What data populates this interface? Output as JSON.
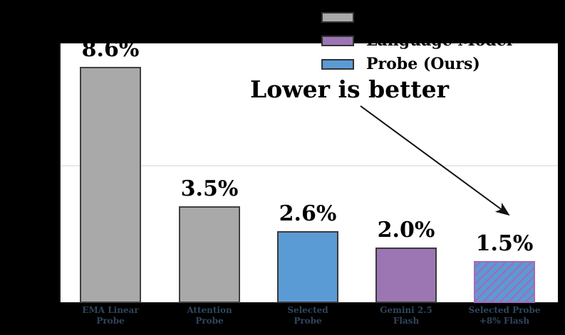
{
  "page": {
    "background_color": "#000000",
    "plot_background_color": "#ffffff"
  },
  "annotation": {
    "text": "Lower is better",
    "arrow": "points from annotation text down-right to the last bar"
  },
  "legend": {
    "position": "top, partially over black background",
    "items": [
      {
        "label": "",
        "color": "#a9a9a9",
        "edge_color": "#333333"
      },
      {
        "label": "Language Model",
        "color": "#9c76b2",
        "edge_color": "#333333"
      },
      {
        "label": "Probe (Ours)",
        "color": "#5b9bd5",
        "edge_color": "#333333"
      }
    ]
  },
  "chart_data": {
    "type": "bar",
    "categories": [
      [
        "EMA Linear",
        "Probe"
      ],
      [
        "Attention",
        "Probe"
      ],
      [
        "Selected",
        "Probe"
      ],
      [
        "Gemini 2.5",
        "Flash"
      ],
      [
        "Selected Probe",
        "+8% Flash"
      ]
    ],
    "values": [
      8.6,
      3.5,
      2.6,
      2.0,
      1.5
    ],
    "value_labels": [
      "8.6%",
      "3.5%",
      "2.6%",
      "2.0%",
      "1.5%"
    ],
    "bar_colors": [
      "#a9a9a9",
      "#a9a9a9",
      "#5b9bd5",
      "#9c76b2",
      "#5b9bd5"
    ],
    "bar_edge_colors": [
      "#404040",
      "#404040",
      "#3a3a3a",
      "#3a3a3a",
      "#a569b5"
    ],
    "hatch": [
      null,
      null,
      null,
      null,
      "/"
    ],
    "hatch_color": "#a569b5",
    "title": "",
    "xlabel": "",
    "ylabel": "",
    "ylim": [
      0,
      9.45
    ],
    "gridlines_pct": [
      5
    ],
    "grid": "horizontal",
    "tick_label_color": "#31455c",
    "legend_position": "upper center"
  }
}
